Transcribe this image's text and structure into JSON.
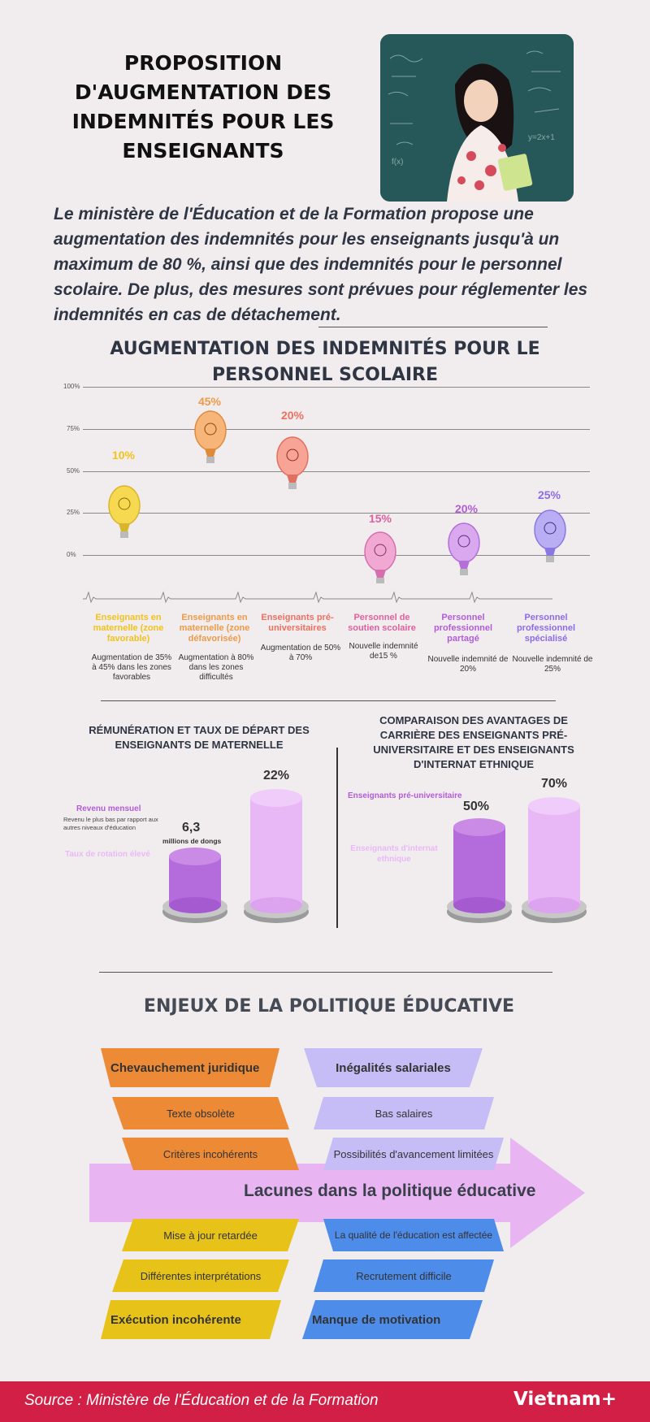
{
  "header": {
    "title": "PROPOSITION D'AUGMENTATION DES INDEMNITÉS POUR LES ENSEIGNANTS",
    "intro": "Le ministère de l'Éducation et de la Formation propose une augmentation des indemnités pour les enseignants jusqu'à un maximum de 80 %, ainsi que des indemnités pour le personnel scolaire. De plus, des mesures sont prévues pour réglementer les indemnités en cas de détachement."
  },
  "section1": {
    "title": "AUGMENTATION DES INDEMNITÉS POUR LE PERSONNEL SCOLAIRE",
    "gridlines": [
      "100%",
      "75%",
      "50%",
      "25%",
      "0%"
    ],
    "items": [
      {
        "pct": "10%",
        "title": "Enseignants en maternelle (zone favorable)",
        "desc": "Augmentation de 35% à 45% dans les zones favorables",
        "color": "#f2c21b"
      },
      {
        "pct": "45%",
        "title": "Enseignants en maternelle (zone défavorisée)",
        "desc": "Augmentation à 80% dans les zones difficultés",
        "color": "#ee9a47"
      },
      {
        "pct": "20%",
        "title": "Enseignants pré-universitaires",
        "desc": "Augmentation de 50% à 70%",
        "color": "#ef6f5f"
      },
      {
        "pct": "15%",
        "title": "Personnel de soutien scolaire",
        "desc": "Nouvelle indemnité de15 %",
        "color": "#e0609e"
      },
      {
        "pct": "20%",
        "title": "Personnel professionnel partagé",
        "desc": "Nouvelle indemnité de 20%",
        "color": "#b25cd8"
      },
      {
        "pct": "25%",
        "title": "Personnel professionnel spécialisé",
        "desc": "Nouvelle indemnité de 25%",
        "color": "#8d6be8"
      }
    ]
  },
  "section2": {
    "left_title": "RÉMUNÉRATION ET TAUX DE DÉPART DES ENSEIGNANTS DE MATERNELLE",
    "revenu_label": "Revenu mensuel",
    "revenu_note": "Revenu le plus bas par rapport aux autres niveaux d'éducation",
    "taux_label": "Taux de rotation élevé",
    "revenu_value": "6,3",
    "revenu_unit": "millions de dongs",
    "taux_value": "22%",
    "right_title": "COMPARAISON DES AVANTAGES DE CARRIÈRE DES ENSEIGNANTS PRÉ-UNIVERSITAIRE ET DES ENSEIGNANTS D'INTERNAT ETHNIQUE",
    "pre_label": "Enseignants pré-universitaire",
    "internat_label": "Enseignants d'internat ethnique",
    "pre_value": "50%",
    "internat_value": "70%"
  },
  "section3": {
    "title": "ENJEUX DE LA POLITIQUE ÉDUCATIVE",
    "arrow_label": "Lacunes dans la politique éducative",
    "orange": [
      "Chevauchement juridique",
      "Texte obsolète",
      "Critères incohérents"
    ],
    "lilac": [
      "Inégalités salariales",
      "Bas salaires",
      "Possibilités d'avancement limitées"
    ],
    "yellow": [
      "Mise à jour retardée",
      "Différentes interprétations",
      "Exécution incohérente"
    ],
    "blue": [
      "La qualité de l'éducation est affectée",
      "Recrutement difficile",
      "Manque de motivation"
    ]
  },
  "footer": {
    "source": "Source : Ministère de l'Éducation et de la Formation",
    "logo": "Vietnam+"
  }
}
